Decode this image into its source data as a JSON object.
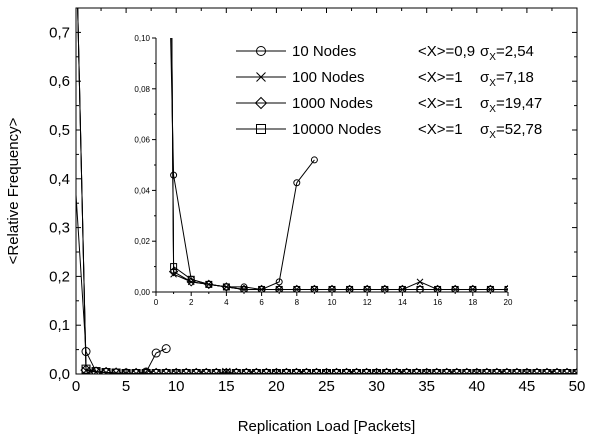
{
  "chart_data": {
    "type": "line",
    "xlabel": "Replication Load [Packets]",
    "ylabel": "<Relative Frequency>",
    "xlim": [
      0,
      50
    ],
    "ylim": [
      0,
      0.75
    ],
    "xticks": [
      "0",
      "5",
      "10",
      "15",
      "20",
      "25",
      "30",
      "35",
      "40",
      "45",
      "50"
    ],
    "yticks": [
      "0,0",
      "0,1",
      "0,2",
      "0,3",
      "0,4",
      "0,5",
      "0,6",
      "0,7"
    ],
    "series": [
      {
        "name": "10 Nodes",
        "mean": "<X>=0,9",
        "sigma": "2,54",
        "marker": "circle",
        "x": [
          0,
          1,
          2,
          3,
          4,
          5,
          6,
          7,
          8,
          9
        ],
        "y": [
          0.367,
          0.046,
          0.005,
          0.003,
          0.002,
          0.002,
          0.001,
          0.004,
          0.043,
          0.052
        ]
      },
      {
        "name": "100 Nodes",
        "mean": "<X>=1",
        "sigma": "7,18",
        "marker": "x",
        "x": [
          0,
          1,
          2,
          3,
          4,
          5,
          6,
          7,
          8,
          9,
          10,
          11,
          12,
          13,
          14,
          15,
          16,
          17,
          18,
          19,
          20
        ],
        "y": [
          0.9,
          0.007,
          0.004,
          0.003,
          0.002,
          0.001,
          0.001,
          0.001,
          0.001,
          0.001,
          0.001,
          0.001,
          0.001,
          0.001,
          0.001,
          0.004,
          0.001,
          0.001,
          0.001,
          0.001,
          0.001
        ]
      },
      {
        "name": "1000 Nodes",
        "mean": "<X>=1",
        "sigma": "19,47",
        "marker": "diamond",
        "x": [
          0,
          1,
          2,
          3,
          4,
          5,
          6,
          7,
          8,
          9,
          10,
          11,
          12,
          13,
          14,
          15,
          16,
          17,
          18,
          19,
          20
        ],
        "y": [
          0.9,
          0.008,
          0.004,
          0.003,
          0.002,
          0.001,
          0.001,
          0.001,
          0.001,
          0.001,
          0.001,
          0.001,
          0.001,
          0.001,
          0.001,
          0.001,
          0.001,
          0.001,
          0.001,
          0.001,
          0.001
        ]
      },
      {
        "name": "10000 Nodes",
        "mean": "<X>=1",
        "sigma": "52,78",
        "marker": "square",
        "x": [
          0,
          1,
          2,
          3,
          4,
          5,
          6,
          7,
          8,
          9,
          10,
          11,
          12,
          13,
          14,
          15,
          16,
          17,
          18,
          19,
          20
        ],
        "y": [
          0.9,
          0.01,
          0.005,
          0.003,
          0.002,
          0.001,
          0.001,
          0.001,
          0.001,
          0.001,
          0.001,
          0.001,
          0.001,
          0.001,
          0.001,
          0.001,
          0.001,
          0.001,
          0.001,
          0.001,
          0.001
        ]
      }
    ],
    "inset": {
      "xlim": [
        0,
        20
      ],
      "ylim": [
        0,
        0.1
      ],
      "xticks": [
        "0",
        "2",
        "4",
        "6",
        "8",
        "10",
        "12",
        "14",
        "16",
        "18",
        "20"
      ],
      "yticks": [
        "0,00",
        "0,02",
        "0,04",
        "0,06",
        "0,08",
        "0,10"
      ]
    },
    "legend": {
      "placement": "top-right",
      "sigma_symbol": "σ",
      "sigma_subscript": "X"
    }
  }
}
